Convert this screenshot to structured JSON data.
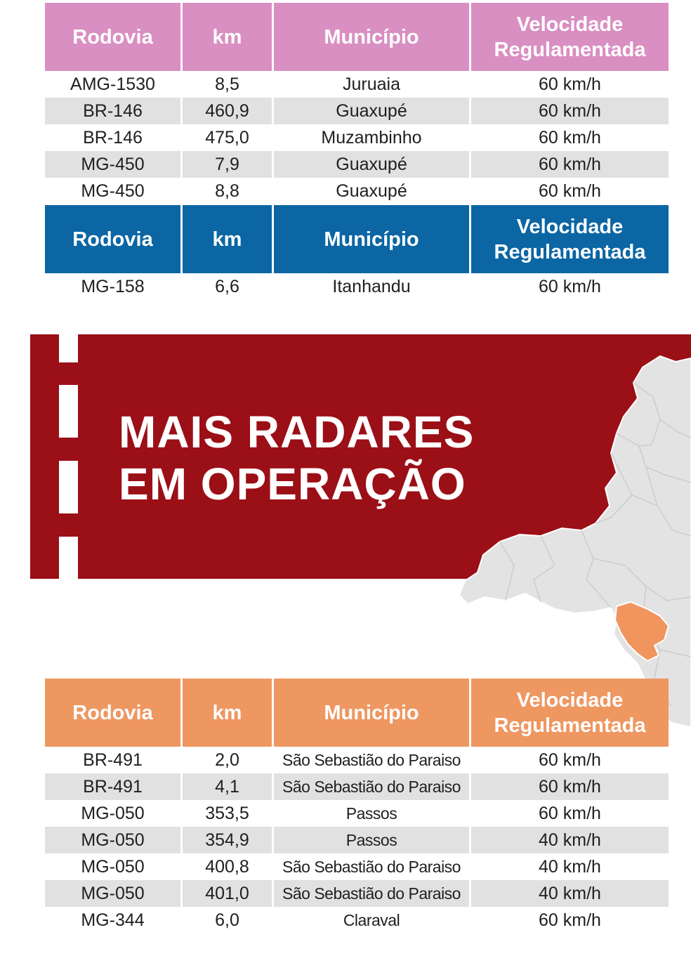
{
  "header": {
    "rodovia": "Rodovia",
    "km": "km",
    "municipio": "Município",
    "velocidade": "Velocidade Regulamentada"
  },
  "colors": {
    "pink_header": "#d98fc2",
    "blue_header": "#0b66a3",
    "orange_header": "#ee9761",
    "banner": "#9b0f17",
    "map_region": "#e3e3e3",
    "map_highlight": "#f0955e"
  },
  "table_pink": [
    {
      "rodovia": "AMG-1530",
      "km": "8,5",
      "municipio": "Juruaia",
      "velocidade": "60 km/h"
    },
    {
      "rodovia": "BR-146",
      "km": "460,9",
      "municipio": "Guaxupé",
      "velocidade": "60 km/h"
    },
    {
      "rodovia": "BR-146",
      "km": "475,0",
      "municipio": "Muzambinho",
      "velocidade": "60 km/h"
    },
    {
      "rodovia": "MG-450",
      "km": "7,9",
      "municipio": "Guaxupé",
      "velocidade": "60 km/h"
    },
    {
      "rodovia": "MG-450",
      "km": "8,8",
      "municipio": "Guaxupé",
      "velocidade": "60 km/h"
    }
  ],
  "table_blue": [
    {
      "rodovia": "MG-158",
      "km": "6,6",
      "municipio": "Itanhandu",
      "velocidade": "60 km/h"
    }
  ],
  "banner": {
    "line1": "MAIS RADARES",
    "line2": "EM OPERAÇÃO"
  },
  "table_orange": [
    {
      "rodovia": "BR-491",
      "km": "2,0",
      "municipio": "São Sebastião do Paraiso",
      "velocidade": "60 km/h"
    },
    {
      "rodovia": "BR-491",
      "km": "4,1",
      "municipio": "São Sebastião do Paraiso",
      "velocidade": "60 km/h"
    },
    {
      "rodovia": "MG-050",
      "km": "353,5",
      "municipio": "Passos",
      "velocidade": "60 km/h"
    },
    {
      "rodovia": "MG-050",
      "km": "354,9",
      "municipio": "Passos",
      "velocidade": "40 km/h"
    },
    {
      "rodovia": "MG-050",
      "km": "400,8",
      "municipio": "São Sebastião do Paraiso",
      "velocidade": "40 km/h"
    },
    {
      "rodovia": "MG-050",
      "km": "401,0",
      "municipio": "São Sebastião do Paraiso",
      "velocidade": "40 km/h"
    },
    {
      "rodovia": "MG-344",
      "km": "6,0",
      "municipio": "Claraval",
      "velocidade": "60 km/h"
    }
  ]
}
